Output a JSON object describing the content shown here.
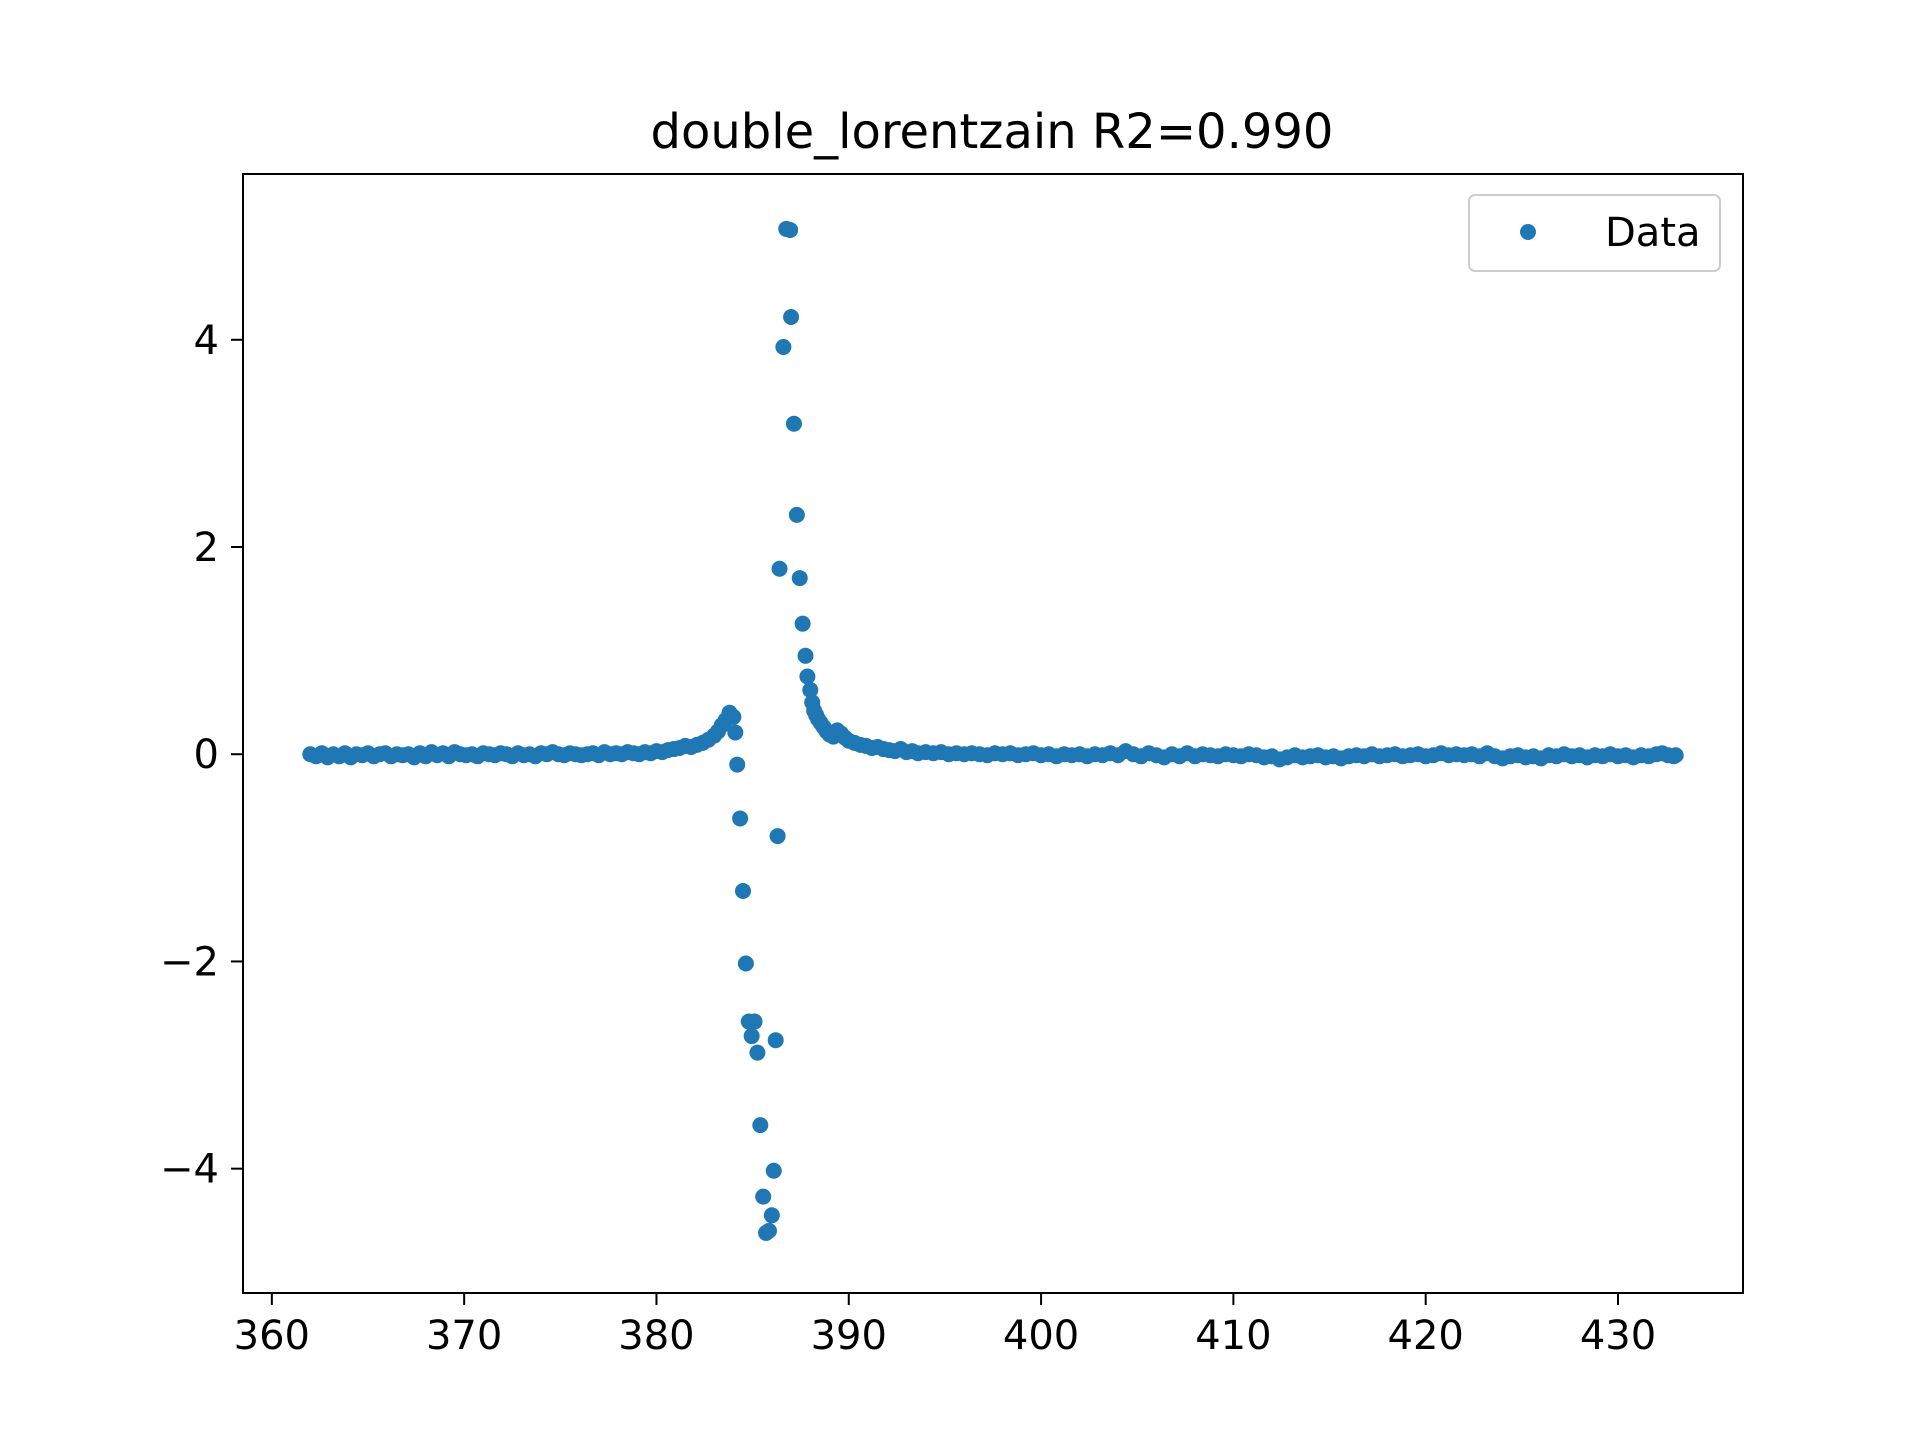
{
  "chart_data": {
    "type": "scatter",
    "title": "double_lorentzain R2=0.990",
    "xlabel": "",
    "ylabel": "",
    "xlim": [
      358.5,
      436.5
    ],
    "ylim": [
      -5.2,
      5.6
    ],
    "x_ticks": [
      360,
      370,
      380,
      390,
      400,
      410,
      420,
      430
    ],
    "y_ticks": [
      -4,
      -2,
      0,
      2,
      4
    ],
    "x_tick_labels": [
      "360",
      "370",
      "380",
      "390",
      "400",
      "410",
      "420",
      "430"
    ],
    "y_tick_labels": [
      "−4",
      "−2",
      "0",
      "2",
      "4"
    ],
    "grid": false,
    "legend": {
      "position": "top-right",
      "entries": [
        "Data"
      ]
    },
    "series": [
      {
        "name": "Data",
        "color": "#1f77b4",
        "marker": "circle",
        "points": [
          [
            362.0,
            0.0
          ],
          [
            362.3,
            -0.02
          ],
          [
            362.6,
            0.01
          ],
          [
            362.9,
            -0.03
          ],
          [
            363.2,
            0.0
          ],
          [
            363.5,
            -0.02
          ],
          [
            363.8,
            0.01
          ],
          [
            364.1,
            -0.03
          ],
          [
            364.4,
            0.0
          ],
          [
            364.7,
            -0.01
          ],
          [
            365.0,
            0.01
          ],
          [
            365.3,
            -0.02
          ],
          [
            365.6,
            0.0
          ],
          [
            365.9,
            0.01
          ],
          [
            366.2,
            -0.02
          ],
          [
            366.5,
            0.0
          ],
          [
            366.8,
            -0.01
          ],
          [
            367.1,
            0.0
          ],
          [
            367.4,
            -0.03
          ],
          [
            367.7,
            0.01
          ],
          [
            368.0,
            -0.02
          ],
          [
            368.3,
            0.02
          ],
          [
            368.6,
            -0.01
          ],
          [
            368.9,
            0.01
          ],
          [
            369.2,
            -0.02
          ],
          [
            369.5,
            0.02
          ],
          [
            369.8,
            0.0
          ],
          [
            370.1,
            -0.01
          ],
          [
            370.4,
            0.0
          ],
          [
            370.7,
            -0.02
          ],
          [
            371.0,
            0.01
          ],
          [
            371.3,
            0.0
          ],
          [
            371.6,
            -0.01
          ],
          [
            371.9,
            0.01
          ],
          [
            372.2,
            0.0
          ],
          [
            372.5,
            -0.02
          ],
          [
            372.8,
            0.01
          ],
          [
            373.1,
            -0.01
          ],
          [
            373.4,
            0.0
          ],
          [
            373.7,
            -0.02
          ],
          [
            374.0,
            0.01
          ],
          [
            374.3,
            0.0
          ],
          [
            374.6,
            0.02
          ],
          [
            374.9,
            0.0
          ],
          [
            375.2,
            -0.01
          ],
          [
            375.5,
            0.01
          ],
          [
            375.8,
            0.0
          ],
          [
            376.1,
            -0.01
          ],
          [
            376.4,
            0.0
          ],
          [
            376.7,
            0.01
          ],
          [
            377.0,
            -0.01
          ],
          [
            377.3,
            0.02
          ],
          [
            377.6,
            0.0
          ],
          [
            377.9,
            0.01
          ],
          [
            378.2,
            0.0
          ],
          [
            378.5,
            0.02
          ],
          [
            378.8,
            0.01
          ],
          [
            379.1,
            0.0
          ],
          [
            379.4,
            0.02
          ],
          [
            379.7,
            0.01
          ],
          [
            380.0,
            0.03
          ],
          [
            380.3,
            0.02
          ],
          [
            380.6,
            0.04
          ],
          [
            380.9,
            0.05
          ],
          [
            381.2,
            0.06
          ],
          [
            381.5,
            0.08
          ],
          [
            381.8,
            0.07
          ],
          [
            382.1,
            0.09
          ],
          [
            382.4,
            0.11
          ],
          [
            382.7,
            0.14
          ],
          [
            383.0,
            0.18
          ],
          [
            383.2,
            0.22
          ],
          [
            383.4,
            0.28
          ],
          [
            383.6,
            0.33
          ],
          [
            383.8,
            0.4
          ],
          [
            384.0,
            0.36
          ],
          [
            384.1,
            0.21
          ],
          [
            384.2,
            -0.1
          ],
          [
            384.35,
            -0.62
          ],
          [
            384.5,
            -1.32
          ],
          [
            384.65,
            -2.02
          ],
          [
            384.8,
            -2.58
          ],
          [
            384.95,
            -2.72
          ],
          [
            385.1,
            -2.58
          ],
          [
            385.25,
            -2.88
          ],
          [
            385.4,
            -3.58
          ],
          [
            385.55,
            -4.27
          ],
          [
            385.7,
            -4.62
          ],
          [
            385.85,
            -4.6
          ],
          [
            386.0,
            -4.45
          ],
          [
            386.1,
            -4.02
          ],
          [
            386.2,
            -2.76
          ],
          [
            386.3,
            -0.79
          ],
          [
            386.4,
            1.79
          ],
          [
            386.6,
            3.93
          ],
          [
            386.75,
            5.07
          ],
          [
            386.95,
            5.06
          ],
          [
            387.0,
            4.22
          ],
          [
            387.15,
            3.19
          ],
          [
            387.3,
            2.31
          ],
          [
            387.45,
            1.7
          ],
          [
            387.6,
            1.26
          ],
          [
            387.75,
            0.95
          ],
          [
            387.85,
            0.75
          ],
          [
            388.0,
            0.62
          ],
          [
            388.1,
            0.5
          ],
          [
            388.2,
            0.42
          ],
          [
            388.3,
            0.38
          ],
          [
            388.4,
            0.34
          ],
          [
            388.55,
            0.3
          ],
          [
            388.7,
            0.26
          ],
          [
            388.85,
            0.22
          ],
          [
            389.0,
            0.19
          ],
          [
            389.2,
            0.17
          ],
          [
            389.4,
            0.23
          ],
          [
            389.6,
            0.2
          ],
          [
            389.8,
            0.16
          ],
          [
            390.0,
            0.13
          ],
          [
            390.3,
            0.11
          ],
          [
            390.6,
            0.09
          ],
          [
            390.9,
            0.08
          ],
          [
            391.2,
            0.06
          ],
          [
            391.5,
            0.07
          ],
          [
            391.8,
            0.05
          ],
          [
            392.1,
            0.04
          ],
          [
            392.4,
            0.03
          ],
          [
            392.7,
            0.05
          ],
          [
            393.0,
            0.02
          ],
          [
            393.3,
            0.03
          ],
          [
            393.6,
            0.01
          ],
          [
            394.0,
            0.02
          ],
          [
            394.4,
            0.01
          ],
          [
            394.8,
            0.02
          ],
          [
            395.2,
            0.0
          ],
          [
            395.6,
            0.01
          ],
          [
            396.0,
            0.0
          ],
          [
            396.4,
            0.01
          ],
          [
            396.8,
            0.0
          ],
          [
            397.2,
            -0.01
          ],
          [
            397.6,
            0.01
          ],
          [
            398.0,
            0.0
          ],
          [
            398.4,
            0.01
          ],
          [
            398.8,
            -0.01
          ],
          [
            399.2,
            0.0
          ],
          [
            399.6,
            0.01
          ],
          [
            400.0,
            -0.01
          ],
          [
            400.4,
            0.0
          ],
          [
            400.8,
            -0.02
          ],
          [
            401.2,
            0.0
          ],
          [
            401.6,
            -0.01
          ],
          [
            402.0,
            0.0
          ],
          [
            402.4,
            -0.02
          ],
          [
            402.8,
            0.0
          ],
          [
            403.2,
            -0.01
          ],
          [
            403.6,
            0.01
          ],
          [
            404.0,
            -0.01
          ],
          [
            404.4,
            0.03
          ],
          [
            404.8,
            0.0
          ],
          [
            405.2,
            -0.02
          ],
          [
            405.6,
            0.01
          ],
          [
            406.0,
            -0.01
          ],
          [
            406.4,
            -0.03
          ],
          [
            406.8,
            0.0
          ],
          [
            407.2,
            -0.02
          ],
          [
            407.6,
            0.01
          ],
          [
            408.0,
            -0.02
          ],
          [
            408.4,
            0.0
          ],
          [
            408.8,
            -0.01
          ],
          [
            409.2,
            -0.02
          ],
          [
            409.6,
            0.0
          ],
          [
            410.0,
            -0.01
          ],
          [
            410.4,
            -0.02
          ],
          [
            410.8,
            0.0
          ],
          [
            411.2,
            -0.01
          ],
          [
            411.6,
            -0.03
          ],
          [
            412.0,
            -0.02
          ],
          [
            412.4,
            -0.05
          ],
          [
            412.8,
            -0.03
          ],
          [
            413.2,
            -0.01
          ],
          [
            413.6,
            -0.03
          ],
          [
            414.0,
            -0.02
          ],
          [
            414.4,
            -0.01
          ],
          [
            414.8,
            -0.03
          ],
          [
            415.2,
            -0.02
          ],
          [
            415.6,
            -0.04
          ],
          [
            416.0,
            -0.02
          ],
          [
            416.4,
            -0.01
          ],
          [
            416.8,
            -0.02
          ],
          [
            417.2,
            0.0
          ],
          [
            417.6,
            -0.02
          ],
          [
            418.0,
            -0.01
          ],
          [
            418.4,
            0.0
          ],
          [
            418.8,
            -0.02
          ],
          [
            419.2,
            -0.01
          ],
          [
            419.6,
            0.0
          ],
          [
            420.0,
            -0.02
          ],
          [
            420.4,
            -0.01
          ],
          [
            420.8,
            0.01
          ],
          [
            421.2,
            -0.01
          ],
          [
            421.6,
            0.0
          ],
          [
            422.0,
            -0.01
          ],
          [
            422.4,
            0.0
          ],
          [
            422.8,
            -0.02
          ],
          [
            423.2,
            0.01
          ],
          [
            423.6,
            -0.02
          ],
          [
            424.0,
            -0.04
          ],
          [
            424.4,
            -0.02
          ],
          [
            424.8,
            -0.01
          ],
          [
            425.2,
            -0.03
          ],
          [
            425.6,
            -0.02
          ],
          [
            426.0,
            -0.04
          ],
          [
            426.4,
            -0.01
          ],
          [
            426.8,
            -0.02
          ],
          [
            427.2,
            0.0
          ],
          [
            427.6,
            -0.02
          ],
          [
            428.0,
            -0.01
          ],
          [
            428.4,
            -0.03
          ],
          [
            428.8,
            -0.01
          ],
          [
            429.2,
            -0.02
          ],
          [
            429.6,
            0.0
          ],
          [
            430.0,
            -0.02
          ],
          [
            430.4,
            -0.01
          ],
          [
            430.8,
            -0.03
          ],
          [
            431.2,
            -0.01
          ],
          [
            431.6,
            -0.02
          ],
          [
            432.0,
            0.0
          ],
          [
            432.3,
            0.01
          ],
          [
            432.6,
            -0.01
          ],
          [
            432.9,
            -0.02
          ],
          [
            433.0,
            -0.01
          ]
        ]
      }
    ]
  }
}
